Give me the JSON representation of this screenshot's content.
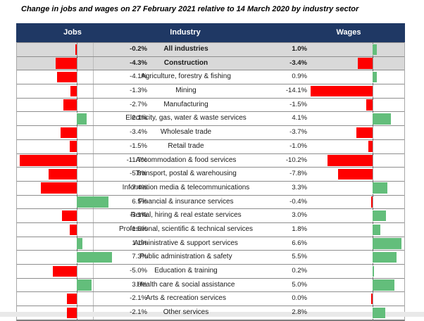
{
  "title": "Change in jobs and wages on 27 February 2021 relative to 14 March 2020 by industry sector",
  "header": {
    "jobs": "Jobs",
    "industry": "Industry",
    "wages": "Wages"
  },
  "colors": {
    "header_bg": "#1F3864",
    "header_text": "#FFFFFF",
    "positive_bar": "#63BE7B",
    "negative_bar": "#FF0000",
    "highlight_row_bg": "#D9D9D9",
    "row_border": "#8E8E8E",
    "zero_line": "#4D4D4D"
  },
  "chart_data": {
    "type": "bar",
    "orientation": "horizontal",
    "title": "Change in jobs and wages on 27 February 2021 relative to 14 March 2020 by industry sector",
    "value_unit": "%",
    "legend_position": "none",
    "grid": false,
    "categories": [
      "All industries",
      "Construction",
      "Agriculture, forestry & fishing",
      "Mining",
      "Manufacturing",
      "Electricity, gas, water & waste services",
      "Wholesale trade",
      "Retail trade",
      "Accommodation & food services",
      "Transport, postal & warehousing",
      "Information media & telecommunications",
      "Financial & insurance services",
      "Rental, hiring & real estate services",
      "Professional, scientific & technical services",
      "Administrative & support services",
      "Public administration & safety",
      "Education & training",
      "Health care & social assistance",
      "Arts & recreation services",
      "Other services"
    ],
    "series": [
      {
        "name": "Jobs",
        "values": [
          -0.2,
          -4.3,
          -4.1,
          -1.3,
          -2.7,
          2.1,
          -3.4,
          -1.5,
          -11.7,
          -5.8,
          -7.4,
          6.5,
          -3.1,
          -1.5,
          1.1,
          7.3,
          -5.0,
          3.0,
          -2.1,
          -2.1
        ]
      },
      {
        "name": "Wages",
        "values": [
          1.0,
          -3.4,
          0.9,
          -14.1,
          -1.5,
          4.1,
          -3.7,
          -1.0,
          -10.2,
          -7.8,
          3.3,
          -0.4,
          3.0,
          1.8,
          6.6,
          5.5,
          0.2,
          5.0,
          0.0,
          2.8
        ]
      }
    ],
    "bold_rows": [
      0,
      1
    ]
  }
}
